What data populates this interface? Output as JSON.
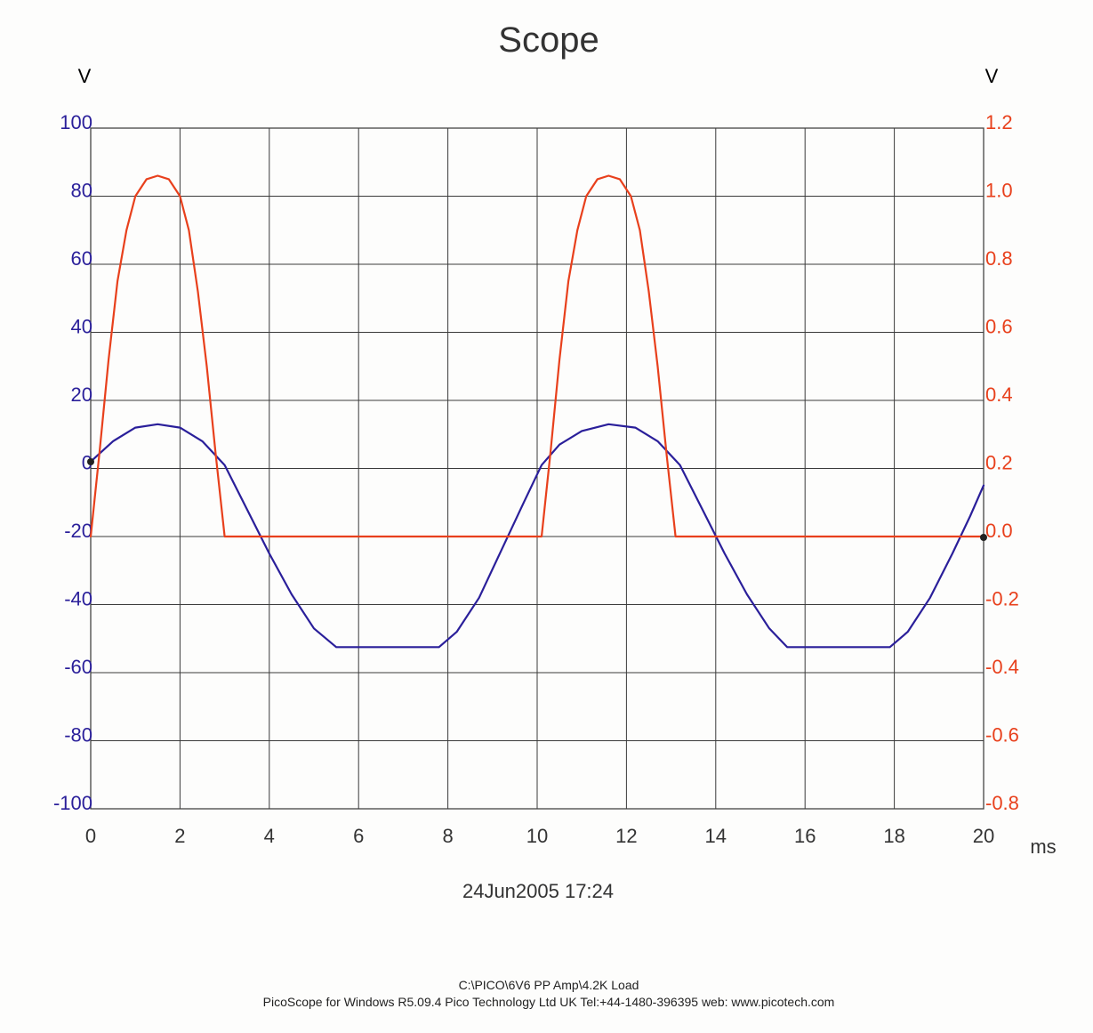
{
  "chart_data": {
    "type": "line",
    "title": "Scope",
    "x": {
      "unit": "ms",
      "range": [
        0,
        20
      ],
      "ticks": [
        0,
        2,
        4,
        6,
        8,
        10,
        12,
        14,
        16,
        18,
        20
      ]
    },
    "y_left": {
      "unit": "V",
      "range": [
        -100,
        100
      ],
      "ticks": [
        100,
        80,
        60,
        40,
        20,
        0,
        -20,
        -40,
        -60,
        -80,
        -100
      ],
      "tick_labels": [
        "100",
        "80",
        "60",
        "40",
        "20",
        "0",
        "-20",
        "-40",
        "-60",
        "-80",
        "-100"
      ],
      "color": "#2a1f9a"
    },
    "y_right": {
      "unit": "V",
      "range": [
        -0.8,
        1.2
      ],
      "ticks": [
        1.2,
        1.0,
        0.8,
        0.6,
        0.4,
        0.2,
        0.0,
        -0.2,
        -0.4,
        -0.6,
        -0.8
      ],
      "tick_labels": [
        "1.2",
        "1.0",
        "0.8",
        "0.6",
        "0.4",
        "0.2",
        "0.0",
        "-0.2",
        "-0.4",
        "-0.6",
        "-0.8"
      ],
      "color": "#e8401c"
    },
    "grid": true,
    "series": [
      {
        "axis": "left",
        "color": "#2a1f9a",
        "points": [
          [
            0,
            2
          ],
          [
            0.5,
            8
          ],
          [
            1.0,
            12
          ],
          [
            1.5,
            13
          ],
          [
            2.0,
            12
          ],
          [
            2.5,
            8
          ],
          [
            3.0,
            1
          ],
          [
            3.5,
            -12
          ],
          [
            4.0,
            -25
          ],
          [
            4.5,
            -37
          ],
          [
            5.0,
            -47
          ],
          [
            5.5,
            -52.5
          ],
          [
            6.0,
            -52.5
          ],
          [
            7.0,
            -52.5
          ],
          [
            7.8,
            -52.5
          ],
          [
            8.2,
            -48
          ],
          [
            8.7,
            -38
          ],
          [
            9.2,
            -24
          ],
          [
            9.7,
            -10
          ],
          [
            10.1,
            1
          ],
          [
            10.5,
            7
          ],
          [
            11.0,
            11
          ],
          [
            11.6,
            13
          ],
          [
            12.2,
            12
          ],
          [
            12.7,
            8
          ],
          [
            13.2,
            1
          ],
          [
            13.7,
            -12
          ],
          [
            14.2,
            -25
          ],
          [
            14.7,
            -37
          ],
          [
            15.2,
            -47
          ],
          [
            15.6,
            -52.5
          ],
          [
            16.5,
            -52.5
          ],
          [
            17.9,
            -52.5
          ],
          [
            18.3,
            -48
          ],
          [
            18.8,
            -38
          ],
          [
            19.3,
            -25
          ],
          [
            19.7,
            -14
          ],
          [
            20.0,
            -5
          ]
        ]
      },
      {
        "axis": "right",
        "color": "#e8401c",
        "points": [
          [
            0,
            0
          ],
          [
            0.2,
            0.25
          ],
          [
            0.4,
            0.52
          ],
          [
            0.6,
            0.75
          ],
          [
            0.8,
            0.9
          ],
          [
            1.0,
            1.0
          ],
          [
            1.25,
            1.05
          ],
          [
            1.5,
            1.06
          ],
          [
            1.75,
            1.05
          ],
          [
            2.0,
            1.0
          ],
          [
            2.2,
            0.9
          ],
          [
            2.4,
            0.72
          ],
          [
            2.6,
            0.5
          ],
          [
            2.8,
            0.24
          ],
          [
            3.0,
            0
          ],
          [
            10.1,
            0
          ],
          [
            10.3,
            0.25
          ],
          [
            10.5,
            0.52
          ],
          [
            10.7,
            0.75
          ],
          [
            10.9,
            0.9
          ],
          [
            11.1,
            1.0
          ],
          [
            11.35,
            1.05
          ],
          [
            11.6,
            1.06
          ],
          [
            11.85,
            1.05
          ],
          [
            12.1,
            1.0
          ],
          [
            12.3,
            0.9
          ],
          [
            12.5,
            0.72
          ],
          [
            12.7,
            0.5
          ],
          [
            12.9,
            0.24
          ],
          [
            13.1,
            0
          ],
          [
            20.0,
            0
          ]
        ]
      }
    ],
    "annotations": [
      "24Jun2005  17:24"
    ]
  },
  "footer": {
    "path": "C:\\PICO\\6V6 PP Amp\\4.2K Load",
    "software": "PicoScope for Windows R5.09.4 Pico Technology Ltd UK  Tel:+44-1480-396395  web: www.picotech.com"
  }
}
